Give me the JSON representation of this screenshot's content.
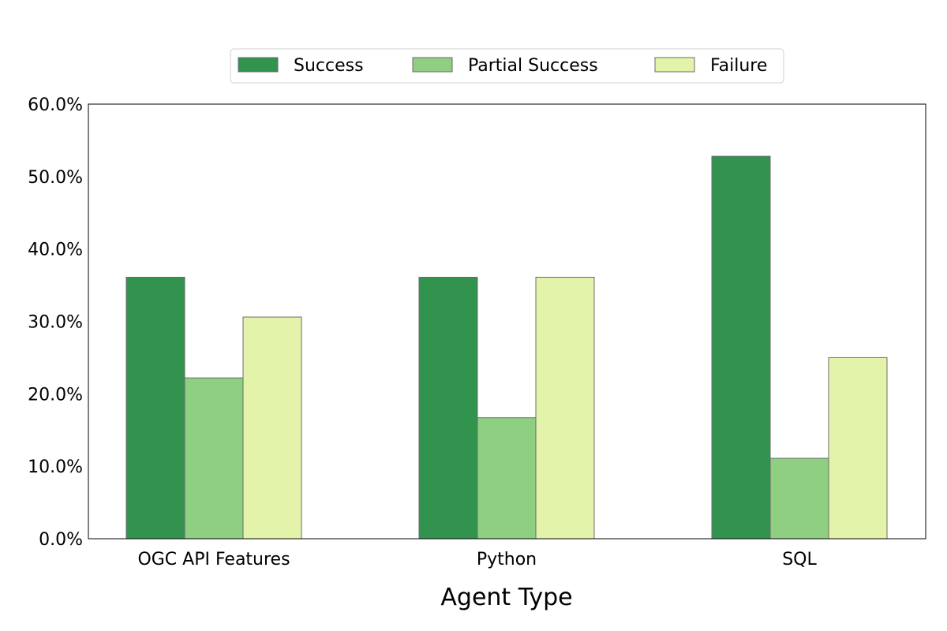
{
  "chart_data": {
    "type": "bar",
    "title": "",
    "xlabel": "Agent Type",
    "ylabel": "",
    "categories": [
      "OGC API Features",
      "Python",
      "SQL"
    ],
    "series": [
      {
        "name": "Success",
        "values": [
          36.1,
          36.1,
          52.8
        ],
        "color": "#31934d"
      },
      {
        "name": "Partial Success",
        "values": [
          22.2,
          16.7,
          11.1
        ],
        "color": "#8ecf81"
      },
      {
        "name": "Failure",
        "values": [
          30.6,
          36.1,
          25.0
        ],
        "color": "#e3f4aa"
      }
    ],
    "ylim": [
      0,
      60
    ],
    "yticks": [
      "0.0%",
      "10.0%",
      "20.0%",
      "30.0%",
      "40.0%",
      "50.0%",
      "60.0%"
    ],
    "legend": "top-center",
    "grid": false,
    "bar_edge_color": "#6b6b6b"
  }
}
